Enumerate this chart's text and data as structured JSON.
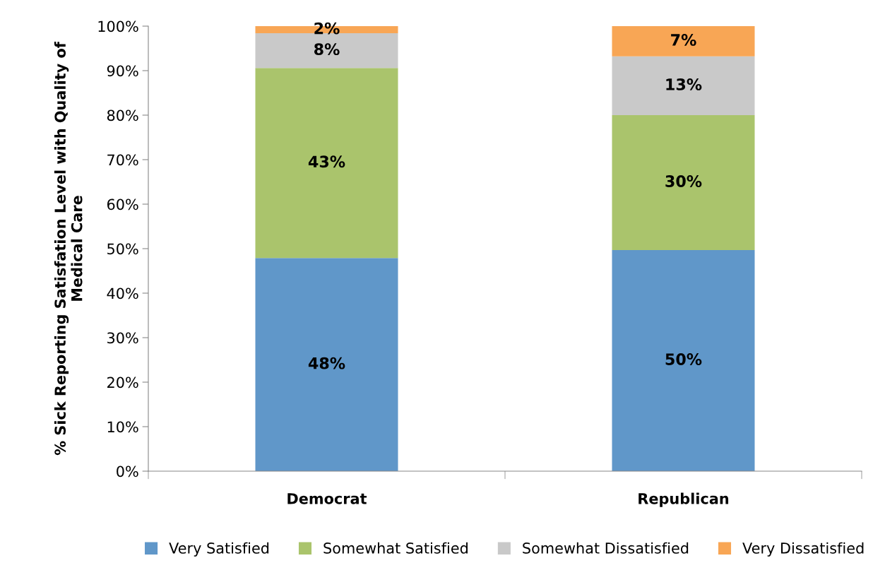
{
  "chart_data": {
    "type": "bar",
    "stacked": true,
    "ylabel": "% Sick Reporting Satisfation Level with Quality of\nMedical Care",
    "categories": [
      "Democrat",
      "Republican"
    ],
    "series": [
      {
        "name": "Very Satisfied",
        "color": "#6097c9",
        "values": [
          47.9,
          49.7
        ],
        "value_labels": [
          "48%",
          "50%"
        ]
      },
      {
        "name": "Somewhat Satisfied",
        "color": "#aac46c",
        "values": [
          42.7,
          30.3
        ],
        "value_labels": [
          "43%",
          "30%"
        ]
      },
      {
        "name": "Somewhat Dissatisfied",
        "color": "#c9c9c9",
        "values": [
          7.8,
          13.2
        ],
        "value_labels": [
          "8%",
          "13%"
        ]
      },
      {
        "name": "Very Dissatisfied",
        "color": "#f8a655",
        "values": [
          1.6,
          6.8
        ],
        "value_labels": [
          "2%",
          "7%"
        ]
      }
    ],
    "ylim": [
      0,
      100
    ],
    "yticks": [
      {
        "value": 0,
        "label": "0%"
      },
      {
        "value": 10,
        "label": "10%"
      },
      {
        "value": 20,
        "label": "20%"
      },
      {
        "value": 30,
        "label": "30%"
      },
      {
        "value": 40,
        "label": "40%"
      },
      {
        "value": 50,
        "label": "50%"
      },
      {
        "value": 60,
        "label": "60%"
      },
      {
        "value": 70,
        "label": "70%"
      },
      {
        "value": 80,
        "label": "80%"
      },
      {
        "value": 90,
        "label": "90%"
      },
      {
        "value": 100,
        "label": "100%"
      }
    ],
    "grid": false,
    "legend": "bottom"
  }
}
